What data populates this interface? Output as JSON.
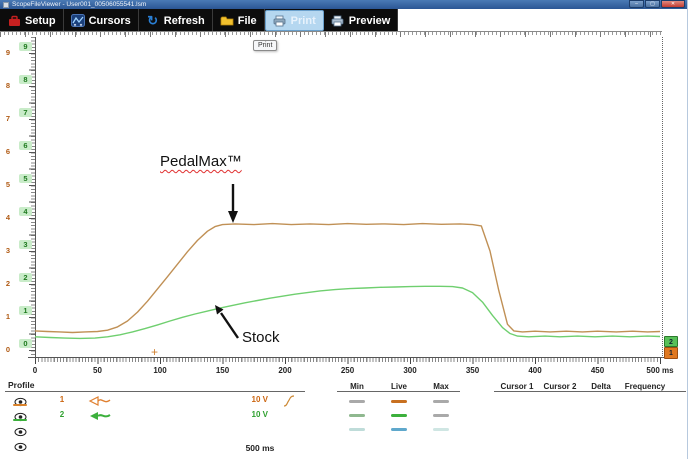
{
  "window": {
    "title": "ScopeFileViewer - User001_00506055541.lsm"
  },
  "toolbar": {
    "buttons": [
      {
        "label": "Setup",
        "icon": "toolbox-icon",
        "active": false
      },
      {
        "label": "Cursors",
        "icon": "cursors-icon",
        "active": false
      },
      {
        "label": "Refresh",
        "icon": "refresh-icon",
        "active": false
      },
      {
        "label": "File",
        "icon": "folder-icon",
        "active": false
      },
      {
        "label": "Print",
        "icon": "printer-icon",
        "active": true
      },
      {
        "label": "Preview",
        "icon": "preview-icon",
        "active": false
      }
    ]
  },
  "tooltip": {
    "text": "Print"
  },
  "icons": {
    "refresh": "↻",
    "trigger_marker": "+"
  },
  "chart_data": {
    "type": "line",
    "title": "",
    "xlabel": "ms",
    "ylabel": "V",
    "xlim": [
      0,
      500
    ],
    "ylim": [
      0,
      9.6
    ],
    "grid": false,
    "x_tick_labels": [
      "0",
      "50",
      "100",
      "150",
      "200",
      "250",
      "300",
      "350",
      "400",
      "450",
      "500 ms"
    ],
    "y_tick_labels": [
      "0",
      "1",
      "2",
      "3",
      "4",
      "5",
      "6",
      "7",
      "8",
      "9"
    ],
    "legend_position": "none",
    "series": [
      {
        "name": "PedalMax™",
        "color": "#c09055",
        "points": [
          [
            0,
            0.58
          ],
          [
            10,
            0.56
          ],
          [
            20,
            0.55
          ],
          [
            30,
            0.53
          ],
          [
            40,
            0.55
          ],
          [
            50,
            0.56
          ],
          [
            58,
            0.6
          ],
          [
            66,
            0.7
          ],
          [
            74,
            0.88
          ],
          [
            82,
            1.15
          ],
          [
            90,
            1.48
          ],
          [
            98,
            1.85
          ],
          [
            106,
            2.22
          ],
          [
            114,
            2.6
          ],
          [
            122,
            2.98
          ],
          [
            130,
            3.32
          ],
          [
            138,
            3.6
          ],
          [
            144,
            3.74
          ],
          [
            150,
            3.8
          ],
          [
            160,
            3.82
          ],
          [
            175,
            3.8
          ],
          [
            190,
            3.83
          ],
          [
            205,
            3.8
          ],
          [
            220,
            3.82
          ],
          [
            235,
            3.8
          ],
          [
            250,
            3.83
          ],
          [
            265,
            3.81
          ],
          [
            280,
            3.82
          ],
          [
            295,
            3.8
          ],
          [
            310,
            3.83
          ],
          [
            325,
            3.81
          ],
          [
            340,
            3.82
          ],
          [
            350,
            3.8
          ],
          [
            357,
            3.76
          ],
          [
            364,
            3.0
          ],
          [
            371,
            1.8
          ],
          [
            378,
            0.78
          ],
          [
            383,
            0.58
          ],
          [
            390,
            0.55
          ],
          [
            400,
            0.57
          ],
          [
            412,
            0.55
          ],
          [
            425,
            0.57
          ],
          [
            438,
            0.55
          ],
          [
            450,
            0.57
          ],
          [
            465,
            0.55
          ],
          [
            478,
            0.57
          ],
          [
            490,
            0.55
          ],
          [
            500,
            0.56
          ]
        ]
      },
      {
        "name": "Stock",
        "color": "#6fcf6f",
        "points": [
          [
            0,
            0.4
          ],
          [
            12,
            0.38
          ],
          [
            24,
            0.36
          ],
          [
            36,
            0.35
          ],
          [
            48,
            0.36
          ],
          [
            58,
            0.4
          ],
          [
            68,
            0.46
          ],
          [
            78,
            0.55
          ],
          [
            88,
            0.65
          ],
          [
            98,
            0.76
          ],
          [
            108,
            0.88
          ],
          [
            118,
            0.99
          ],
          [
            128,
            1.09
          ],
          [
            138,
            1.18
          ],
          [
            148,
            1.27
          ],
          [
            158,
            1.35
          ],
          [
            168,
            1.43
          ],
          [
            178,
            1.5
          ],
          [
            188,
            1.57
          ],
          [
            198,
            1.63
          ],
          [
            208,
            1.69
          ],
          [
            218,
            1.74
          ],
          [
            228,
            1.79
          ],
          [
            240,
            1.83
          ],
          [
            252,
            1.86
          ],
          [
            264,
            1.88
          ],
          [
            276,
            1.9
          ],
          [
            288,
            1.91
          ],
          [
            300,
            1.92
          ],
          [
            312,
            1.93
          ],
          [
            324,
            1.93
          ],
          [
            334,
            1.92
          ],
          [
            342,
            1.88
          ],
          [
            350,
            1.74
          ],
          [
            358,
            1.45
          ],
          [
            366,
            1.05
          ],
          [
            374,
            0.68
          ],
          [
            380,
            0.5
          ],
          [
            386,
            0.42
          ],
          [
            395,
            0.4
          ],
          [
            408,
            0.42
          ],
          [
            420,
            0.4
          ],
          [
            434,
            0.42
          ],
          [
            448,
            0.4
          ],
          [
            462,
            0.42
          ],
          [
            476,
            0.4
          ],
          [
            490,
            0.42
          ],
          [
            500,
            0.41
          ]
        ]
      }
    ],
    "annotations": [
      {
        "text": "PedalMax™",
        "points_to": "upper trace plateau"
      },
      {
        "text": "Stock",
        "points_to": "lower trace ramp"
      }
    ]
  },
  "channel_markers": [
    {
      "label": "2",
      "color": "#58c058"
    },
    {
      "label": "1",
      "color": "#e07820"
    }
  ],
  "profile": {
    "title": "Profile",
    "rows": [
      {
        "channel": "1",
        "range": "10 V",
        "color": "#cc6611",
        "visible": true,
        "trigger_slope": "rising"
      },
      {
        "channel": "2",
        "range": "10 V",
        "color": "#2fa02f",
        "visible": true,
        "trigger_slope": ""
      },
      {
        "channel": "",
        "range": "",
        "color": "",
        "visible": true,
        "trigger_slope": ""
      },
      {
        "channel": "",
        "range": "",
        "color": "",
        "visible": true,
        "trigger_slope": ""
      }
    ],
    "timebase": "500 ms"
  },
  "measurements": {
    "value_headers": [
      "Min",
      "Live",
      "Max"
    ],
    "cursor_headers": [
      "Cursor 1",
      "Cursor 2",
      "Delta",
      "Frequency"
    ],
    "rows": [
      {
        "dash_colors": [
          "#a9a9a9",
          "#c87020",
          "#a9a9a9"
        ]
      },
      {
        "dash_colors": [
          "#8fb88f",
          "#3cb03c",
          "#a9a9a9"
        ]
      },
      {
        "dash_colors": [
          "#bfdcd9",
          "#5fa8cc",
          "#cfe6e3"
        ]
      }
    ]
  }
}
